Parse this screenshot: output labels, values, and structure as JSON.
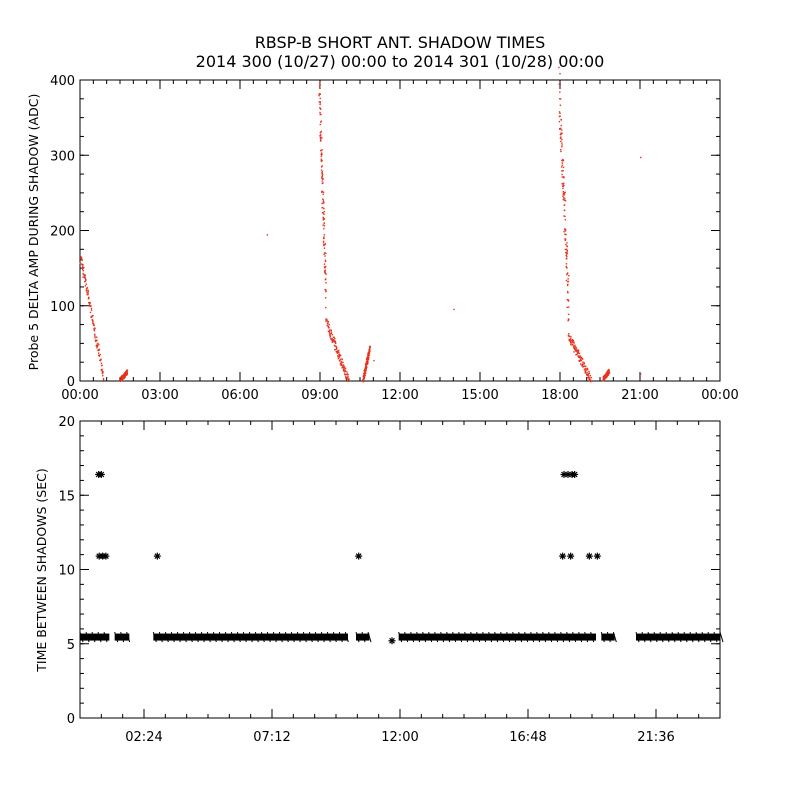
{
  "title_line1": "RBSP-B SHORT ANT. SHADOW TIMES",
  "title_line2": "2014 300 (10/27) 00:00 to 2014 301 (10/28) 00:00",
  "chart_data": [
    {
      "type": "scatter",
      "ylabel": "Probe 5 DELTA AMP DURING SHADOW (ADC)",
      "xlabel": "",
      "xlim": [
        0,
        24
      ],
      "ylim": [
        0,
        400
      ],
      "x_tick_labels": [
        "00:00",
        "03:00",
        "06:00",
        "09:00",
        "12:00",
        "15:00",
        "18:00",
        "21:00",
        "00:00"
      ],
      "y_tick_labels": [
        "0",
        "100",
        "200",
        "300",
        "400"
      ],
      "x_ticks": [
        0,
        3,
        6,
        9,
        12,
        15,
        18,
        21,
        24
      ],
      "y_ticks": [
        0,
        100,
        200,
        300,
        400
      ],
      "color": "#e8321e",
      "segments": [
        {
          "x_start": 0.0,
          "x_end": 0.85,
          "y_start": 165,
          "y_end": 8,
          "spread": 8
        },
        {
          "x_start": 1.5,
          "x_end": 1.75,
          "y_start": 3,
          "y_end": 13,
          "spread": 3
        },
        {
          "x_start": 8.95,
          "x_end": 9.2,
          "y_start": 380,
          "y_end": 120,
          "spread": 30
        },
        {
          "x_start": 9.2,
          "x_end": 10.05,
          "y_start": 80,
          "y_end": 2,
          "spread": 6
        },
        {
          "x_start": 10.6,
          "x_end": 10.85,
          "y_start": 2,
          "y_end": 45,
          "spread": 4
        },
        {
          "x_start": 17.95,
          "x_end": 18.3,
          "y_start": 385,
          "y_end": 100,
          "spread": 35
        },
        {
          "x_start": 18.3,
          "x_end": 19.15,
          "y_start": 60,
          "y_end": 3,
          "spread": 6
        },
        {
          "x_start": 19.6,
          "x_end": 19.82,
          "y_start": 3,
          "y_end": 14,
          "spread": 3
        }
      ],
      "points": [
        {
          "x": 7.0,
          "y": 195
        },
        {
          "x": 14.0,
          "y": 96
        },
        {
          "x": 11.0,
          "y": 28
        },
        {
          "x": 21.0,
          "y": 298
        },
        {
          "x": 21.0,
          "y": 10
        }
      ]
    },
    {
      "type": "scatter",
      "ylabel": "TIME BETWEEN SHADOWS (SEC)",
      "xlabel": "",
      "xlim": [
        0,
        24
      ],
      "ylim": [
        0,
        20
      ],
      "x_tick_labels": [
        "02:24",
        "07:12",
        "12:00",
        "16:48",
        "21:36"
      ],
      "y_tick_labels": [
        "0",
        "5",
        "10",
        "15",
        "20"
      ],
      "x_ticks": [
        2.4,
        7.2,
        12.0,
        16.8,
        21.6
      ],
      "y_ticks": [
        0,
        5,
        10,
        15,
        20
      ],
      "color": "#000000",
      "marker": "asterisk",
      "baseline_value": 5.45,
      "baseline_ranges": [
        [
          0.0,
          1.1
        ],
        [
          1.3,
          1.85
        ],
        [
          2.75,
          10.05
        ],
        [
          10.35,
          10.85
        ],
        [
          11.95,
          19.35
        ],
        [
          19.55,
          20.05
        ],
        [
          20.85,
          24.0
        ]
      ],
      "points": [
        {
          "x": 0.7,
          "y": 16.4
        },
        {
          "x": 0.8,
          "y": 16.4
        },
        {
          "x": 0.72,
          "y": 10.9
        },
        {
          "x": 0.85,
          "y": 10.9
        },
        {
          "x": 0.97,
          "y": 10.9
        },
        {
          "x": 2.9,
          "y": 10.9
        },
        {
          "x": 10.45,
          "y": 10.9
        },
        {
          "x": 11.7,
          "y": 5.2
        },
        {
          "x": 18.15,
          "y": 16.4
        },
        {
          "x": 18.3,
          "y": 16.4
        },
        {
          "x": 18.45,
          "y": 16.4
        },
        {
          "x": 18.55,
          "y": 16.4
        },
        {
          "x": 18.1,
          "y": 10.9
        },
        {
          "x": 18.4,
          "y": 10.9
        },
        {
          "x": 19.1,
          "y": 10.9
        },
        {
          "x": 19.4,
          "y": 10.9
        }
      ]
    }
  ]
}
